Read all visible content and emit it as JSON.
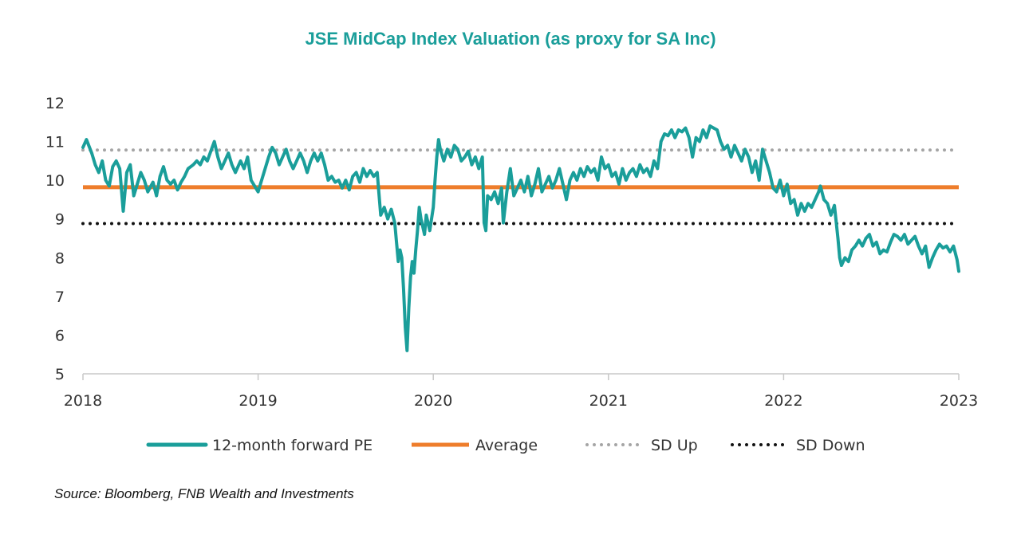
{
  "chart_data": {
    "type": "line",
    "title": "JSE MidCap Index Valuation (as proxy for SA Inc)",
    "xlabel": "",
    "ylabel": "",
    "xlim": [
      2018,
      2023
    ],
    "ylim": [
      5,
      12
    ],
    "x_ticks": [
      "2018",
      "2019",
      "2020",
      "2021",
      "2022",
      "2023"
    ],
    "y_ticks": [
      "5",
      "6",
      "7",
      "8",
      "9",
      "10",
      "11",
      "12"
    ],
    "grid": false,
    "legend_position": "bottom",
    "series": [
      {
        "name": "12-month forward PE",
        "color": "#1a9e9a",
        "style": "solid",
        "points": [
          [
            2018.0,
            10.85
          ],
          [
            2018.02,
            11.05
          ],
          [
            2018.05,
            10.7
          ],
          [
            2018.07,
            10.4
          ],
          [
            2018.09,
            10.2
          ],
          [
            2018.11,
            10.5
          ],
          [
            2018.13,
            10.0
          ],
          [
            2018.15,
            9.85
          ],
          [
            2018.17,
            10.35
          ],
          [
            2018.19,
            10.5
          ],
          [
            2018.21,
            10.3
          ],
          [
            2018.23,
            9.2
          ],
          [
            2018.25,
            10.2
          ],
          [
            2018.27,
            10.4
          ],
          [
            2018.29,
            9.6
          ],
          [
            2018.31,
            9.9
          ],
          [
            2018.33,
            10.2
          ],
          [
            2018.35,
            10.0
          ],
          [
            2018.37,
            9.7
          ],
          [
            2018.4,
            9.95
          ],
          [
            2018.42,
            9.6
          ],
          [
            2018.44,
            10.1
          ],
          [
            2018.46,
            10.35
          ],
          [
            2018.48,
            10.0
          ],
          [
            2018.5,
            9.9
          ],
          [
            2018.52,
            10.0
          ],
          [
            2018.54,
            9.75
          ],
          [
            2018.56,
            9.95
          ],
          [
            2018.58,
            10.1
          ],
          [
            2018.6,
            10.3
          ],
          [
            2018.63,
            10.4
          ],
          [
            2018.65,
            10.5
          ],
          [
            2018.67,
            10.4
          ],
          [
            2018.69,
            10.6
          ],
          [
            2018.71,
            10.5
          ],
          [
            2018.73,
            10.75
          ],
          [
            2018.75,
            11.0
          ],
          [
            2018.77,
            10.6
          ],
          [
            2018.79,
            10.3
          ],
          [
            2018.81,
            10.5
          ],
          [
            2018.83,
            10.7
          ],
          [
            2018.85,
            10.4
          ],
          [
            2018.87,
            10.2
          ],
          [
            2018.9,
            10.5
          ],
          [
            2018.92,
            10.3
          ],
          [
            2018.94,
            10.6
          ],
          [
            2018.96,
            10.0
          ],
          [
            2018.98,
            9.85
          ],
          [
            2019.0,
            9.7
          ],
          [
            2019.02,
            10.0
          ],
          [
            2019.04,
            10.3
          ],
          [
            2019.06,
            10.6
          ],
          [
            2019.08,
            10.85
          ],
          [
            2019.1,
            10.7
          ],
          [
            2019.12,
            10.4
          ],
          [
            2019.14,
            10.6
          ],
          [
            2019.16,
            10.8
          ],
          [
            2019.18,
            10.5
          ],
          [
            2019.2,
            10.3
          ],
          [
            2019.22,
            10.5
          ],
          [
            2019.24,
            10.7
          ],
          [
            2019.26,
            10.5
          ],
          [
            2019.28,
            10.2
          ],
          [
            2019.3,
            10.5
          ],
          [
            2019.32,
            10.7
          ],
          [
            2019.34,
            10.5
          ],
          [
            2019.36,
            10.7
          ],
          [
            2019.38,
            10.4
          ],
          [
            2019.4,
            10.0
          ],
          [
            2019.42,
            10.1
          ],
          [
            2019.44,
            9.95
          ],
          [
            2019.46,
            10.0
          ],
          [
            2019.48,
            9.8
          ],
          [
            2019.5,
            10.0
          ],
          [
            2019.52,
            9.75
          ],
          [
            2019.54,
            10.1
          ],
          [
            2019.56,
            10.2
          ],
          [
            2019.58,
            9.95
          ],
          [
            2019.6,
            10.3
          ],
          [
            2019.62,
            10.1
          ],
          [
            2019.64,
            10.25
          ],
          [
            2019.66,
            10.1
          ],
          [
            2019.68,
            10.2
          ],
          [
            2019.7,
            9.1
          ],
          [
            2019.72,
            9.3
          ],
          [
            2019.74,
            9.0
          ],
          [
            2019.76,
            9.25
          ],
          [
            2019.78,
            8.9
          ],
          [
            2019.79,
            8.4
          ],
          [
            2019.8,
            7.9
          ],
          [
            2019.81,
            8.2
          ],
          [
            2019.82,
            8.0
          ],
          [
            2019.83,
            7.2
          ],
          [
            2019.84,
            6.2
          ],
          [
            2019.85,
            5.6
          ],
          [
            2019.86,
            6.7
          ],
          [
            2019.87,
            7.5
          ],
          [
            2019.88,
            7.9
          ],
          [
            2019.89,
            7.6
          ],
          [
            2019.9,
            8.2
          ],
          [
            2019.91,
            8.7
          ],
          [
            2019.92,
            9.3
          ],
          [
            2019.93,
            9.0
          ],
          [
            2019.95,
            8.6
          ],
          [
            2019.96,
            9.1
          ],
          [
            2019.98,
            8.7
          ],
          [
            2020.0,
            9.3
          ],
          [
            2020.01,
            10.0
          ],
          [
            2020.02,
            10.6
          ],
          [
            2020.03,
            11.05
          ],
          [
            2020.04,
            10.8
          ],
          [
            2020.06,
            10.5
          ],
          [
            2020.08,
            10.8
          ],
          [
            2020.1,
            10.6
          ],
          [
            2020.12,
            10.9
          ],
          [
            2020.14,
            10.8
          ],
          [
            2020.16,
            10.5
          ],
          [
            2020.18,
            10.6
          ],
          [
            2020.2,
            10.75
          ],
          [
            2020.22,
            10.4
          ],
          [
            2020.24,
            10.6
          ],
          [
            2020.26,
            10.3
          ],
          [
            2020.28,
            10.6
          ],
          [
            2020.29,
            8.9
          ],
          [
            2020.3,
            8.7
          ],
          [
            2020.31,
            9.6
          ],
          [
            2020.33,
            9.5
          ],
          [
            2020.35,
            9.7
          ],
          [
            2020.37,
            9.4
          ],
          [
            2020.39,
            9.8
          ],
          [
            2020.4,
            8.9
          ],
          [
            2020.42,
            9.7
          ],
          [
            2020.44,
            10.3
          ],
          [
            2020.46,
            9.6
          ],
          [
            2020.48,
            9.8
          ],
          [
            2020.5,
            10.0
          ],
          [
            2020.52,
            9.7
          ],
          [
            2020.54,
            10.1
          ],
          [
            2020.56,
            9.6
          ],
          [
            2020.58,
            9.9
          ],
          [
            2020.6,
            10.3
          ],
          [
            2020.62,
            9.7
          ],
          [
            2020.64,
            9.9
          ],
          [
            2020.66,
            10.1
          ],
          [
            2020.68,
            9.8
          ],
          [
            2020.7,
            10.0
          ],
          [
            2020.72,
            10.3
          ],
          [
            2020.74,
            9.9
          ],
          [
            2020.76,
            9.5
          ],
          [
            2020.78,
            10.0
          ],
          [
            2020.8,
            10.2
          ],
          [
            2020.82,
            10.0
          ],
          [
            2020.84,
            10.3
          ],
          [
            2020.86,
            10.1
          ],
          [
            2020.88,
            10.35
          ],
          [
            2020.9,
            10.2
          ],
          [
            2020.92,
            10.3
          ],
          [
            2020.94,
            10.0
          ],
          [
            2020.96,
            10.6
          ],
          [
            2020.98,
            10.3
          ],
          [
            2021.0,
            10.4
          ],
          [
            2021.02,
            10.1
          ],
          [
            2021.04,
            10.2
          ],
          [
            2021.06,
            9.9
          ],
          [
            2021.08,
            10.3
          ],
          [
            2021.1,
            10.0
          ],
          [
            2021.12,
            10.2
          ],
          [
            2021.14,
            10.3
          ],
          [
            2021.16,
            10.1
          ],
          [
            2021.18,
            10.4
          ],
          [
            2021.2,
            10.2
          ],
          [
            2021.22,
            10.3
          ],
          [
            2021.24,
            10.1
          ],
          [
            2021.26,
            10.5
          ],
          [
            2021.28,
            10.3
          ],
          [
            2021.3,
            11.0
          ],
          [
            2021.32,
            11.2
          ],
          [
            2021.34,
            11.15
          ],
          [
            2021.36,
            11.3
          ],
          [
            2021.38,
            11.1
          ],
          [
            2021.4,
            11.3
          ],
          [
            2021.42,
            11.25
          ],
          [
            2021.44,
            11.35
          ],
          [
            2021.46,
            11.1
          ],
          [
            2021.48,
            10.6
          ],
          [
            2021.5,
            11.1
          ],
          [
            2021.52,
            11.0
          ],
          [
            2021.54,
            11.3
          ],
          [
            2021.56,
            11.1
          ],
          [
            2021.58,
            11.4
          ],
          [
            2021.6,
            11.35
          ],
          [
            2021.62,
            11.3
          ],
          [
            2021.64,
            11.0
          ],
          [
            2021.66,
            10.8
          ],
          [
            2021.68,
            10.9
          ],
          [
            2021.7,
            10.6
          ],
          [
            2021.72,
            10.9
          ],
          [
            2021.74,
            10.7
          ],
          [
            2021.76,
            10.5
          ],
          [
            2021.78,
            10.8
          ],
          [
            2021.8,
            10.6
          ],
          [
            2021.82,
            10.2
          ],
          [
            2021.84,
            10.5
          ],
          [
            2021.86,
            10.0
          ],
          [
            2021.88,
            10.8
          ],
          [
            2021.9,
            10.5
          ],
          [
            2021.92,
            10.2
          ],
          [
            2021.94,
            9.8
          ],
          [
            2021.96,
            9.7
          ],
          [
            2021.98,
            10.0
          ],
          [
            2022.0,
            9.6
          ],
          [
            2022.02,
            9.9
          ],
          [
            2022.04,
            9.4
          ],
          [
            2022.06,
            9.5
          ],
          [
            2022.08,
            9.1
          ],
          [
            2022.1,
            9.4
          ],
          [
            2022.12,
            9.2
          ],
          [
            2022.14,
            9.4
          ],
          [
            2022.16,
            9.3
          ],
          [
            2022.18,
            9.5
          ],
          [
            2022.2,
            9.7
          ],
          [
            2022.21,
            9.85
          ],
          [
            2022.23,
            9.5
          ],
          [
            2022.25,
            9.4
          ],
          [
            2022.27,
            9.1
          ],
          [
            2022.29,
            9.35
          ],
          [
            2022.31,
            8.5
          ],
          [
            2022.32,
            8.0
          ],
          [
            2022.33,
            7.8
          ],
          [
            2022.35,
            8.0
          ],
          [
            2022.37,
            7.9
          ],
          [
            2022.39,
            8.2
          ],
          [
            2022.41,
            8.3
          ],
          [
            2022.43,
            8.45
          ],
          [
            2022.45,
            8.3
          ],
          [
            2022.47,
            8.5
          ],
          [
            2022.49,
            8.6
          ],
          [
            2022.51,
            8.3
          ],
          [
            2022.53,
            8.4
          ],
          [
            2022.55,
            8.1
          ],
          [
            2022.57,
            8.2
          ],
          [
            2022.59,
            8.15
          ],
          [
            2022.61,
            8.4
          ],
          [
            2022.63,
            8.6
          ],
          [
            2022.65,
            8.55
          ],
          [
            2022.67,
            8.45
          ],
          [
            2022.69,
            8.6
          ],
          [
            2022.71,
            8.35
          ],
          [
            2022.73,
            8.45
          ],
          [
            2022.75,
            8.55
          ],
          [
            2022.77,
            8.3
          ],
          [
            2022.79,
            8.1
          ],
          [
            2022.81,
            8.3
          ],
          [
            2022.83,
            7.75
          ],
          [
            2022.85,
            8.0
          ],
          [
            2022.87,
            8.2
          ],
          [
            2022.89,
            8.35
          ],
          [
            2022.91,
            8.25
          ],
          [
            2022.93,
            8.3
          ],
          [
            2022.95,
            8.15
          ],
          [
            2022.97,
            8.3
          ],
          [
            2022.99,
            7.95
          ],
          [
            2023.0,
            7.65
          ]
        ]
      },
      {
        "name": "Average",
        "color": "#ee7d2b",
        "style": "solid",
        "points": [
          [
            2018.0,
            9.82
          ],
          [
            2023.0,
            9.82
          ]
        ]
      },
      {
        "name": "SD Up",
        "color": "#a5a5a5",
        "style": "dotted",
        "points": [
          [
            2018.0,
            10.78
          ],
          [
            2023.0,
            10.78
          ]
        ]
      },
      {
        "name": "SD Down",
        "color": "#111111",
        "style": "dotted",
        "points": [
          [
            2018.0,
            8.88
          ],
          [
            2023.0,
            8.88
          ]
        ]
      }
    ]
  },
  "source": "Source: Bloomberg, FNB Wealth and Investments"
}
